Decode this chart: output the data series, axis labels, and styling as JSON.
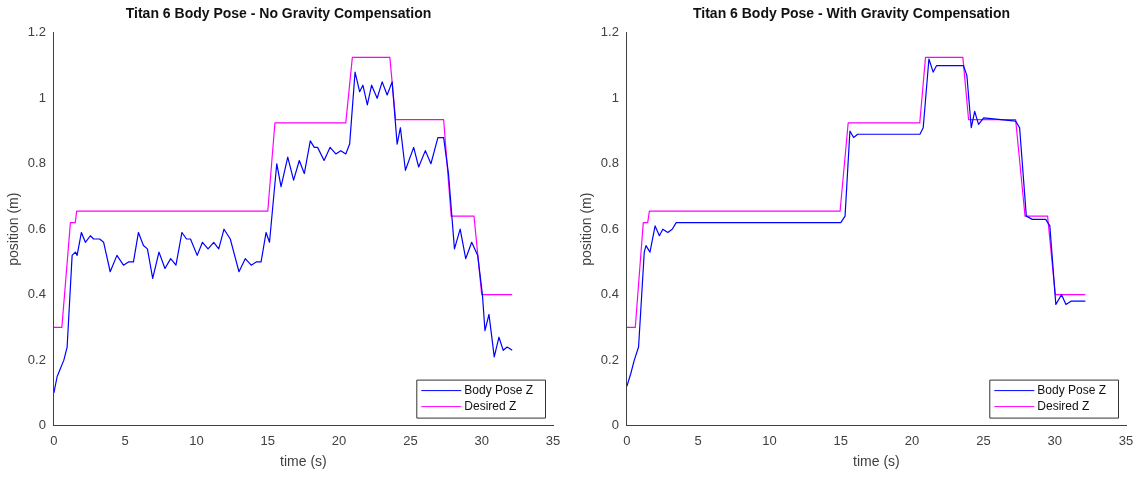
{
  "chart_data": [
    {
      "type": "line",
      "title": "Titan 6 Body Pose - No Gravity Compensation",
      "xlabel": "time (s)",
      "ylabel": "position (m)",
      "xlim": [
        0,
        35
      ],
      "xticks": [
        0,
        5,
        10,
        15,
        20,
        25,
        30,
        35
      ],
      "ylim": [
        0,
        1.2
      ],
      "yticks": [
        0,
        0.2,
        0.4,
        0.6,
        0.8,
        1,
        1.2
      ],
      "grid": false,
      "legend": "bottom right",
      "series": [
        {
          "name": "Body Pose Z",
          "color": "#0000ff",
          "x": [
            0,
            0.23,
            0.7,
            0.93,
            1.28,
            1.51,
            1.63,
            1.93,
            2.21,
            2.56,
            2.79,
            3.21,
            3.49,
            3.95,
            4.42,
            4.88,
            5.23,
            5.58,
            5.93,
            6.28,
            6.56,
            6.93,
            7.37,
            7.79,
            8.19,
            8.56,
            8.98,
            9.3,
            9.58,
            10.05,
            10.42,
            10.81,
            11.21,
            11.56,
            11.93,
            12.37,
            12.98,
            13.42,
            13.84,
            14.19,
            14.53,
            14.88,
            15.12,
            15.63,
            15.93,
            16.4,
            16.81,
            17.21,
            17.56,
            17.98,
            18.26,
            18.49,
            18.95,
            19.37,
            19.77,
            20.12,
            20.47,
            20.74,
            21.12,
            21.44,
            21.67,
            21.98,
            22.28,
            22.67,
            23.02,
            23.37,
            23.72,
            24.07,
            24.3,
            24.65,
            25.23,
            25.58,
            26.05,
            26.44,
            26.93,
            27.33,
            27.67,
            28.09,
            28.49,
            28.88,
            29.3,
            29.72,
            30.05,
            30.23,
            30.51,
            30.88,
            31.21,
            31.51,
            31.79,
            32.14
          ],
          "values": [
            0.1,
            0.15,
            0.2,
            0.24,
            0.52,
            0.53,
            0.52,
            0.59,
            0.56,
            0.58,
            0.57,
            0.57,
            0.56,
            0.47,
            0.52,
            0.49,
            0.5,
            0.5,
            0.59,
            0.55,
            0.54,
            0.45,
            0.53,
            0.48,
            0.51,
            0.49,
            0.59,
            0.57,
            0.57,
            0.52,
            0.56,
            0.54,
            0.56,
            0.54,
            0.6,
            0.57,
            0.47,
            0.51,
            0.49,
            0.5,
            0.5,
            0.59,
            0.56,
            0.8,
            0.73,
            0.82,
            0.75,
            0.81,
            0.77,
            0.87,
            0.85,
            0.85,
            0.81,
            0.85,
            0.83,
            0.84,
            0.83,
            0.86,
            1.08,
            1.02,
            1.04,
            0.98,
            1.04,
            1,
            1.05,
            1.01,
            1.05,
            0.86,
            0.91,
            0.78,
            0.85,
            0.79,
            0.84,
            0.8,
            0.88,
            0.88,
            0.77,
            0.54,
            0.6,
            0.51,
            0.56,
            0.52,
            0.4,
            0.29,
            0.34,
            0.21,
            0.27,
            0.23,
            0.24,
            0.23
          ]
        },
        {
          "name": "Desired Z",
          "color": "#ff00ff",
          "x": [
            0,
            0.56,
            1.16,
            1.5,
            1.6,
            15,
            15.5,
            20.47,
            20.93,
            23.56,
            23.96,
            27.33,
            27.86,
            29.46,
            30,
            32.14
          ],
          "values": [
            0.3,
            0.3,
            0.62,
            0.62,
            0.655,
            0.655,
            0.925,
            0.925,
            1.125,
            1.125,
            0.935,
            0.935,
            0.64,
            0.64,
            0.4,
            0.4
          ]
        }
      ]
    },
    {
      "type": "line",
      "title": "Titan 6 Body Pose - With Gravity Compensation",
      "xlabel": "time (s)",
      "ylabel": "position (m)",
      "xlim": [
        0,
        35
      ],
      "xticks": [
        0,
        5,
        10,
        15,
        20,
        25,
        30,
        35
      ],
      "ylim": [
        0,
        1.2
      ],
      "yticks": [
        0,
        0.2,
        0.4,
        0.6,
        0.8,
        1,
        1.2
      ],
      "grid": false,
      "legend": "bottom right",
      "series": [
        {
          "name": "Body Pose Z",
          "color": "#0000ff",
          "x": [
            0,
            0.28,
            0.52,
            0.82,
            1.22,
            1.34,
            1.62,
            1.98,
            2.28,
            2.52,
            2.87,
            3.18,
            3.46,
            3.81,
            7.46,
            15,
            15.3,
            15.64,
            15.9,
            16.19,
            16.54,
            20.55,
            20.78,
            21.18,
            21.48,
            21.72,
            23.6,
            23.84,
            24.15,
            24.39,
            24.66,
            25.02,
            27.26,
            27.54,
            28.01,
            28.43,
            29.37,
            29.66,
            30.08,
            30.48,
            30.79,
            31.14,
            32.15
          ],
          "values": [
            0.12,
            0.16,
            0.2,
            0.24,
            0.53,
            0.55,
            0.53,
            0.61,
            0.58,
            0.6,
            0.59,
            0.6,
            0.62,
            0.62,
            0.62,
            0.62,
            0.64,
            0.9,
            0.88,
            0.89,
            0.89,
            0.89,
            0.91,
            1.12,
            1.08,
            1.1,
            1.1,
            1.07,
            0.91,
            0.96,
            0.92,
            0.94,
            0.93,
            0.91,
            0.64,
            0.63,
            0.63,
            0.61,
            0.37,
            0.4,
            0.37,
            0.38,
            0.38
          ]
        },
        {
          "name": "Desired Z",
          "color": "#ff00ff",
          "x": [
            0,
            0.59,
            1.15,
            1.46,
            1.58,
            14.95,
            15.52,
            20.54,
            20.94,
            23.56,
            23.96,
            27.26,
            27.92,
            29.5,
            30.04,
            32.15
          ],
          "values": [
            0.3,
            0.3,
            0.62,
            0.62,
            0.655,
            0.655,
            0.925,
            0.925,
            1.125,
            1.125,
            0.935,
            0.935,
            0.64,
            0.64,
            0.4,
            0.4
          ]
        }
      ]
    }
  ]
}
